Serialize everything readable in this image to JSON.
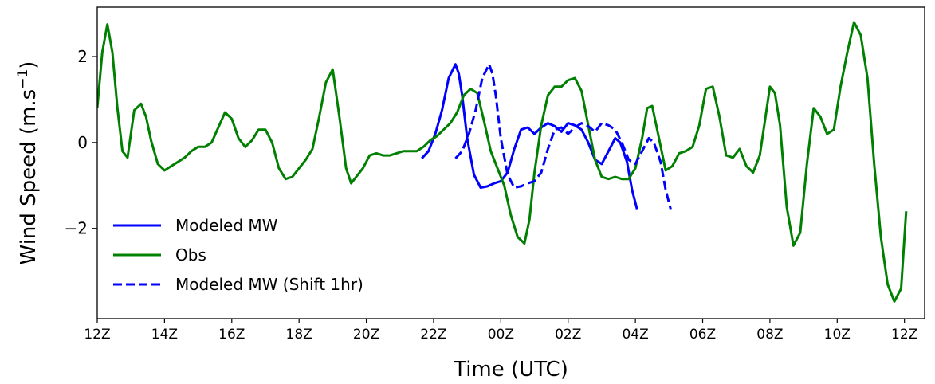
{
  "chart_data": {
    "type": "line",
    "xlabel": "Time (UTC)",
    "ylabel_main": "Wind Speed (m.s",
    "ylabel_sup": "−1",
    "ylabel_close": ")",
    "xlim": [
      0,
      24.6
    ],
    "ylim": [
      -4.1,
      3.15
    ],
    "x_ticks": [
      {
        "x": 0,
        "label": "12Z"
      },
      {
        "x": 2,
        "label": "14Z"
      },
      {
        "x": 4,
        "label": "16Z"
      },
      {
        "x": 6,
        "label": "18Z"
      },
      {
        "x": 8,
        "label": "20Z"
      },
      {
        "x": 10,
        "label": "22Z"
      },
      {
        "x": 12,
        "label": "00Z"
      },
      {
        "x": 14,
        "label": "02Z"
      },
      {
        "x": 16,
        "label": "04Z"
      },
      {
        "x": 18,
        "label": "06Z"
      },
      {
        "x": 20,
        "label": "08Z"
      },
      {
        "x": 22,
        "label": "10Z"
      },
      {
        "x": 24,
        "label": "12Z"
      }
    ],
    "y_ticks": [
      {
        "y": 2,
        "label": "2"
      },
      {
        "y": 0,
        "label": "0"
      },
      {
        "y": -2,
        "label": "−2"
      }
    ],
    "grid": false,
    "legend_position": "lower-left",
    "series": [
      {
        "name": "Modeled MW",
        "color": "#0000ff",
        "style": "solid",
        "x": [
          9.65,
          9.85,
          10.05,
          10.25,
          10.45,
          10.65,
          10.75,
          10.85,
          11.0,
          11.2,
          11.4,
          11.6,
          11.8,
          12.0,
          12.2,
          12.4,
          12.6,
          12.8,
          13.0,
          13.2,
          13.4,
          13.6,
          13.8,
          14.0,
          14.2,
          14.4,
          14.6,
          14.8,
          15.0,
          15.2,
          15.4,
          15.55,
          15.75,
          15.9,
          16.05
        ],
        "y": [
          -0.37,
          -0.2,
          0.2,
          0.75,
          1.5,
          1.82,
          1.6,
          1.1,
          0.1,
          -0.75,
          -1.05,
          -1.02,
          -0.95,
          -0.9,
          -0.7,
          -0.15,
          0.3,
          0.35,
          0.2,
          0.35,
          0.45,
          0.38,
          0.25,
          0.45,
          0.4,
          0.3,
          0.0,
          -0.4,
          -0.5,
          -0.2,
          0.1,
          0.0,
          -0.45,
          -1.1,
          -1.55
        ]
      },
      {
        "name": "Obs",
        "color": "#008000",
        "style": "solid",
        "x": [
          0,
          0.15,
          0.3,
          0.45,
          0.6,
          0.75,
          0.9,
          1.1,
          1.3,
          1.45,
          1.6,
          1.8,
          2.0,
          2.2,
          2.4,
          2.6,
          2.8,
          3.0,
          3.2,
          3.4,
          3.6,
          3.8,
          4.0,
          4.2,
          4.4,
          4.6,
          4.8,
          5.0,
          5.2,
          5.4,
          5.6,
          5.8,
          6.0,
          6.2,
          6.4,
          6.6,
          6.8,
          7.0,
          7.2,
          7.4,
          7.55,
          7.7,
          7.9,
          8.1,
          8.3,
          8.5,
          8.7,
          8.9,
          9.1,
          9.3,
          9.5,
          9.7,
          9.9,
          10.1,
          10.3,
          10.5,
          10.7,
          10.9,
          11.1,
          11.3,
          11.5,
          11.7,
          11.9,
          12.1,
          12.3,
          12.5,
          12.7,
          12.85,
          13.0,
          13.2,
          13.4,
          13.6,
          13.8,
          14.0,
          14.2,
          14.4,
          14.6,
          14.8,
          15.0,
          15.2,
          15.4,
          15.6,
          15.8,
          16.0,
          16.2,
          16.35,
          16.5,
          16.7,
          16.9,
          17.1,
          17.3,
          17.5,
          17.7,
          17.9,
          18.1,
          18.3,
          18.5,
          18.7,
          18.9,
          19.1,
          19.3,
          19.5,
          19.7,
          19.85,
          20.0,
          20.15,
          20.3,
          20.5,
          20.7,
          20.9,
          21.1,
          21.3,
          21.5,
          21.7,
          21.9,
          22.1,
          22.3,
          22.5,
          22.7,
          22.9,
          23.1,
          23.3,
          23.5,
          23.7,
          23.9,
          24.05
        ],
        "y": [
          0.8,
          2.1,
          2.75,
          2.1,
          0.8,
          -0.2,
          -0.35,
          0.75,
          0.9,
          0.6,
          0.05,
          -0.5,
          -0.65,
          -0.55,
          -0.45,
          -0.35,
          -0.2,
          -0.1,
          -0.1,
          0.0,
          0.35,
          0.7,
          0.55,
          0.1,
          -0.1,
          0.05,
          0.3,
          0.3,
          0.0,
          -0.6,
          -0.85,
          -0.8,
          -0.6,
          -0.4,
          -0.15,
          0.6,
          1.4,
          1.7,
          0.6,
          -0.6,
          -0.95,
          -0.8,
          -0.6,
          -0.3,
          -0.25,
          -0.3,
          -0.3,
          -0.25,
          -0.2,
          -0.2,
          -0.2,
          -0.1,
          0.05,
          0.15,
          0.3,
          0.45,
          0.7,
          1.1,
          1.25,
          1.15,
          0.5,
          -0.2,
          -0.6,
          -1.0,
          -1.7,
          -2.2,
          -2.35,
          -1.8,
          -0.7,
          0.4,
          1.1,
          1.3,
          1.3,
          1.45,
          1.5,
          1.2,
          0.4,
          -0.4,
          -0.8,
          -0.85,
          -0.8,
          -0.85,
          -0.85,
          -0.6,
          0.1,
          0.8,
          0.85,
          0.1,
          -0.65,
          -0.55,
          -0.25,
          -0.2,
          -0.1,
          0.4,
          1.25,
          1.3,
          0.6,
          -0.3,
          -0.35,
          -0.15,
          -0.55,
          -0.7,
          -0.3,
          0.5,
          1.3,
          1.15,
          0.4,
          -1.5,
          -2.4,
          -2.1,
          -0.5,
          0.8,
          0.6,
          0.2,
          0.3,
          1.3,
          2.1,
          2.8,
          2.5,
          1.5,
          -0.5,
          -2.2,
          -3.3,
          -3.7,
          -3.4,
          -1.6
        ]
      },
      {
        "name": "Modeled MW (Shift 1hr)",
        "color": "#0000ff",
        "style": "dashed",
        "x": [
          10.65,
          10.85,
          11.05,
          11.25,
          11.45,
          11.65,
          11.75,
          11.85,
          12.0,
          12.2,
          12.4,
          12.6,
          12.8,
          13.0,
          13.2,
          13.4,
          13.6,
          13.8,
          14.0,
          14.2,
          14.4,
          14.6,
          14.8,
          15.0,
          15.2,
          15.4,
          15.6,
          15.8,
          16.0,
          16.2,
          16.4,
          16.55,
          16.75,
          16.9,
          17.05
        ],
        "y": [
          -0.37,
          -0.2,
          0.2,
          0.75,
          1.5,
          1.82,
          1.6,
          1.1,
          0.1,
          -0.75,
          -1.05,
          -1.02,
          -0.95,
          -0.9,
          -0.7,
          -0.15,
          0.3,
          0.35,
          0.2,
          0.35,
          0.45,
          0.38,
          0.25,
          0.45,
          0.4,
          0.3,
          0.0,
          -0.4,
          -0.5,
          -0.2,
          0.1,
          0.0,
          -0.45,
          -1.1,
          -1.55
        ]
      }
    ]
  }
}
